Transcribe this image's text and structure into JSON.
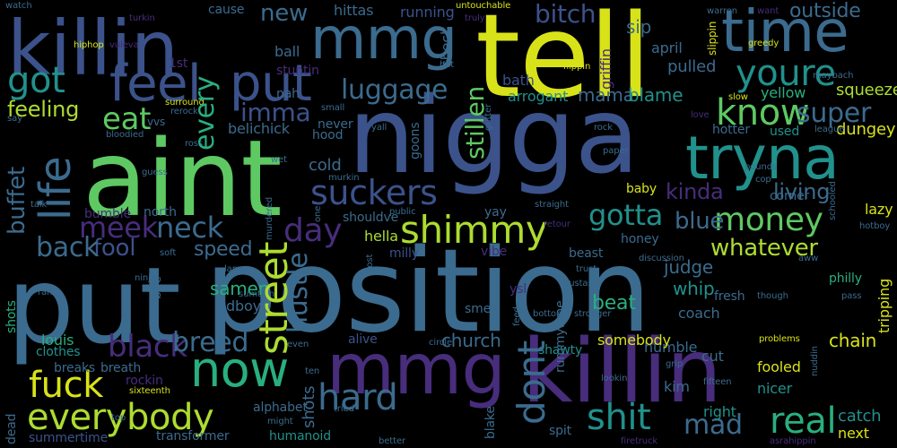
{
  "palette": {
    "background": "#000000",
    "yellow": "#d8e219",
    "green": "#5ec962",
    "teal": "#21918c",
    "blue": "#3b528b",
    "indigo": "#472d7b",
    "purple": "#440154",
    "lime": "#addc30",
    "cyan": "#29af7f"
  },
  "words": [
    "put",
    "position",
    "nigga",
    "aint",
    "tell",
    "killin",
    "mmg",
    "killin",
    "mmg",
    "tryna",
    "time",
    "feel",
    "put",
    "got",
    "youre",
    "know",
    "life",
    "suckers",
    "street",
    "money",
    "shimmy",
    "now",
    "fuck",
    "everybody",
    "hard",
    "shit",
    "real",
    "mad",
    "dont",
    "black",
    "breed",
    "hustle",
    "day",
    "gotta",
    "neck",
    "meek",
    "fool",
    "back",
    "blue",
    "kinda",
    "living",
    "super",
    "outside",
    "bitch",
    "luggage",
    "new",
    "imma",
    "every",
    "eat",
    "buffet",
    "feeling",
    "whatever",
    "speed",
    "judge",
    "whip",
    "samen",
    "church",
    "chain",
    "stillen",
    "beat",
    "mama",
    "blame",
    "arrogant",
    "bath",
    "sip",
    "april",
    "pulled",
    "griffin",
    "yellow",
    "squeeze",
    "used",
    "dungey",
    "corner",
    "lazy",
    "baby",
    "philly",
    "catch",
    "next",
    "nicer",
    "fooled",
    "cut",
    "right",
    "kim",
    "humble",
    "somebody",
    "shawty",
    "blake",
    "alive",
    "smell",
    "ysl",
    "coach",
    "fresh",
    "louis",
    "clothes",
    "breaks",
    "breath",
    "rockin",
    "alphabet",
    "humanoid",
    "transformer",
    "summertime",
    "dead",
    "cold",
    "shots",
    "hood",
    "never",
    "belichick",
    "nah",
    "ball",
    "stuntin",
    "hittas",
    "running",
    "cause",
    "check",
    "shouldve",
    "north",
    "bumble",
    "yay",
    "hella",
    "vibe",
    "milly",
    "beast",
    "honey",
    "schooled",
    "tripping",
    "hotter",
    "love",
    "dboy",
    "bee",
    "vvs",
    "1st",
    "vuleva",
    "hiphop",
    "turkin",
    "watch",
    "warren",
    "want",
    "greedy",
    "slow",
    "slippin",
    "flippin",
    "truly",
    "untouchable",
    "maybach",
    "league",
    "paper",
    "rock",
    "gutter",
    "hot",
    "goons",
    "straight",
    "public",
    "retour",
    "murkin",
    "murdered",
    "wet",
    "ross",
    "guess",
    "soft",
    "talk",
    "small",
    "rerock",
    "surround",
    "bloodied",
    "yall",
    "say",
    "ninja",
    "ran",
    "lame",
    "sumthin",
    "even",
    "ten",
    "might",
    "tried",
    "top",
    "sixteenth",
    "better",
    "feed",
    "bottom",
    "stronger",
    "circle",
    "spit",
    "rummytime",
    "lookin",
    "fifteen",
    "grip",
    "problems",
    "nuddin",
    "though",
    "pass",
    "hotboy",
    "aww",
    "pounds",
    "cop",
    "firetruck",
    "asrahippin",
    "trust",
    "discussion",
    "bustas",
    "cost",
    "one",
    "ghost"
  ]
}
